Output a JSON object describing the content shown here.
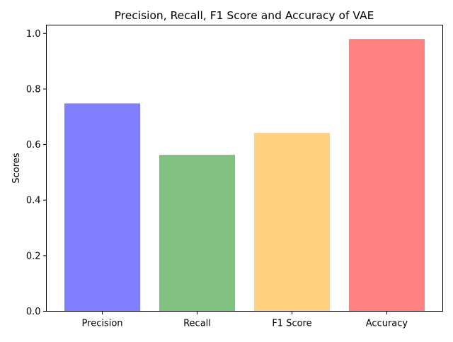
{
  "chart_data": {
    "type": "bar",
    "title": "Precision, Recall, F1 Score and Accuracy of VAE",
    "xlabel": "",
    "ylabel": "Scores",
    "categories": [
      "Precision",
      "Recall",
      "F1 Score",
      "Accuracy"
    ],
    "values": [
      0.748,
      0.563,
      0.642,
      0.98
    ],
    "colors": [
      "#8080ff",
      "#80c080",
      "#ffd080",
      "#ff8080"
    ],
    "ylim": [
      0,
      1.03
    ],
    "yticks": [
      "0.0",
      "0.2",
      "0.4",
      "0.6",
      "0.8",
      "1.0"
    ],
    "grid": false,
    "legend": "none"
  }
}
